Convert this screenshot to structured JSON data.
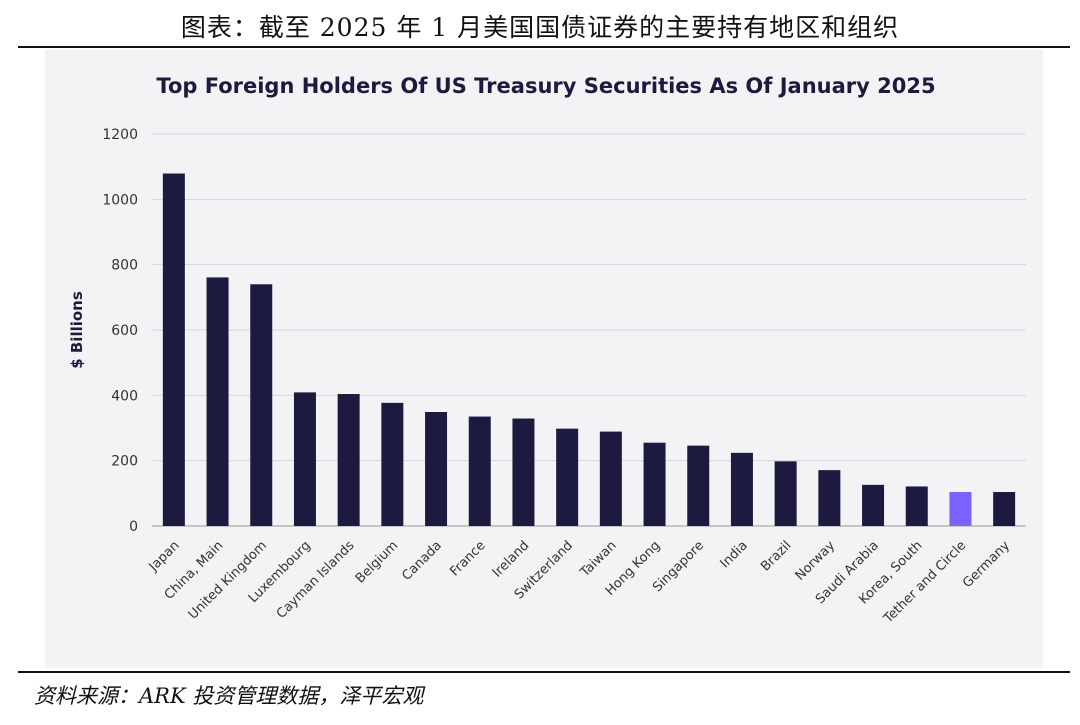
{
  "caption": "图表：截至 2025 年 1 月美国国债证券的主要持有地区和组织",
  "source": "资料来源：ARK 投资管理数据，泽平宏观",
  "chart_data": {
    "type": "bar",
    "title": "Top Foreign Holders Of US Treasury Securities As Of January 2025",
    "xlabel": "",
    "ylabel": "$ Billions",
    "ylim": [
      0,
      1200
    ],
    "yticks": [
      0,
      200,
      400,
      600,
      800,
      1000,
      1200
    ],
    "grid": true,
    "categories": [
      "Japan",
      "China, Main",
      "United Kingdom",
      "Luxembourg",
      "Cayman Islands",
      "Belgium",
      "Canada",
      "France",
      "Ireland",
      "Switzerland",
      "Taiwan",
      "Hong Kong",
      "Singapore",
      "India",
      "Brazil",
      "Norway",
      "Saudi Arabia",
      "Korea, South",
      "Tether and Circle",
      "Germany"
    ],
    "values": [
      1079,
      761,
      740,
      409,
      404,
      377,
      349,
      335,
      329,
      298,
      289,
      255,
      246,
      224,
      198,
      171,
      126,
      121,
      104,
      104
    ],
    "colors": {
      "default": "#1c1b3f",
      "highlight": "#7b61ff"
    },
    "highlight": "Tether and Circle"
  }
}
